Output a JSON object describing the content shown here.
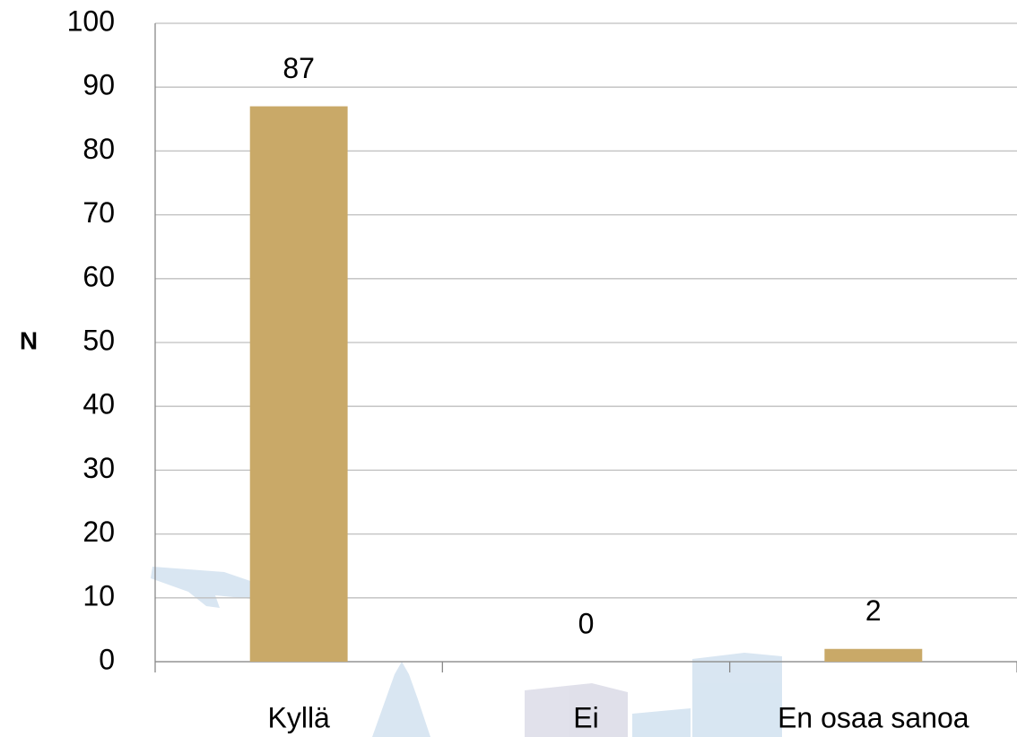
{
  "chart_data": {
    "type": "bar",
    "y_label": "N",
    "categories": [
      "Kyllä",
      "Ei",
      "En osaa sanoa"
    ],
    "values": [
      87,
      0,
      2
    ],
    "color": "#c9a968",
    "ylim": [
      0,
      100
    ],
    "yticks": [
      0,
      10,
      20,
      30,
      40,
      50,
      60,
      70,
      80,
      90,
      100
    ],
    "grid": true
  }
}
